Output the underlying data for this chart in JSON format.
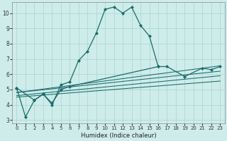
{
  "xlabel": "Humidex (Indice chaleur)",
  "background_color": "#ceecea",
  "grid_color": "#aed8d4",
  "line_color": "#1a6b6b",
  "xlim": [
    -0.5,
    23.5
  ],
  "ylim": [
    2.8,
    10.7
  ],
  "yticks": [
    3,
    4,
    5,
    6,
    7,
    8,
    9,
    10
  ],
  "xticks": [
    0,
    1,
    2,
    3,
    4,
    5,
    6,
    7,
    8,
    9,
    10,
    11,
    12,
    13,
    14,
    15,
    16,
    17,
    18,
    19,
    20,
    21,
    22,
    23
  ],
  "main_curve": {
    "x": [
      0,
      1,
      2,
      3,
      4,
      5,
      6,
      7,
      8,
      9,
      10,
      11,
      12,
      13,
      14,
      15,
      16
    ],
    "y": [
      5.1,
      3.2,
      4.3,
      4.7,
      4.0,
      5.3,
      5.5,
      6.9,
      7.5,
      8.7,
      10.25,
      10.4,
      10.0,
      10.4,
      9.2,
      8.5,
      6.5
    ]
  },
  "curve2": {
    "x": [
      0,
      2,
      3,
      4,
      5,
      6,
      16,
      17,
      19,
      21,
      22,
      23
    ],
    "y": [
      5.1,
      4.3,
      4.7,
      4.1,
      5.0,
      5.2,
      6.5,
      6.5,
      5.85,
      6.4,
      6.3,
      6.5
    ]
  },
  "regression_lines": [
    {
      "x": [
        0,
        23
      ],
      "y": [
        4.8,
        6.55
      ]
    },
    {
      "x": [
        0,
        23
      ],
      "y": [
        4.8,
        6.2
      ]
    },
    {
      "x": [
        0,
        23
      ],
      "y": [
        4.6,
        5.9
      ]
    },
    {
      "x": [
        0,
        23
      ],
      "y": [
        4.5,
        5.55
      ]
    }
  ]
}
